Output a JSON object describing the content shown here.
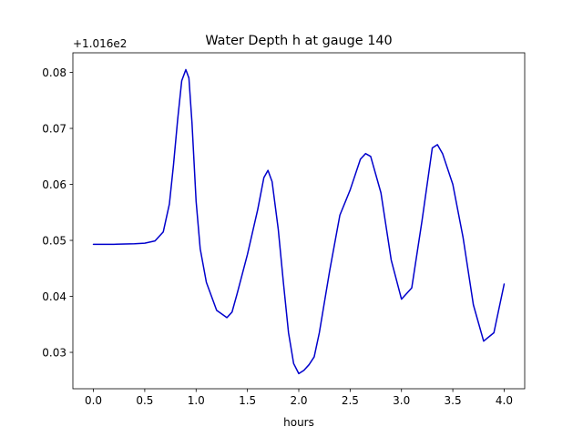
{
  "chart_data": {
    "type": "line",
    "title": "Water Depth h at gauge 140",
    "xlabel": "hours",
    "ylabel": "",
    "y_offset_label": "+1.016e2",
    "xlim": [
      -0.2,
      4.2
    ],
    "ylim": [
      0.0235,
      0.0835
    ],
    "x_ticks": [
      0.0,
      0.5,
      1.0,
      1.5,
      2.0,
      2.5,
      3.0,
      3.5,
      4.0
    ],
    "x_tick_labels": [
      "0.0",
      "0.5",
      "1.0",
      "1.5",
      "2.0",
      "2.5",
      "3.0",
      "3.5",
      "4.0"
    ],
    "y_ticks": [
      0.03,
      0.04,
      0.05,
      0.06,
      0.07,
      0.08
    ],
    "y_tick_labels": [
      "0.03",
      "0.04",
      "0.05",
      "0.06",
      "0.07",
      "0.08"
    ],
    "grid": false,
    "line_color": "#0000cc",
    "series": [
      {
        "x": [
          0.0,
          0.2,
          0.4,
          0.5,
          0.6,
          0.68,
          0.74,
          0.78,
          0.82,
          0.86,
          0.9,
          0.93,
          0.96,
          1.0,
          1.04,
          1.1,
          1.2,
          1.3,
          1.35,
          1.4,
          1.5,
          1.6,
          1.66,
          1.7,
          1.74,
          1.8,
          1.85,
          1.9,
          1.95,
          2.0,
          2.05,
          2.1,
          2.15,
          2.2,
          2.3,
          2.4,
          2.5,
          2.6,
          2.65,
          2.7,
          2.8,
          2.9,
          3.0,
          3.1,
          3.2,
          3.3,
          3.35,
          3.4,
          3.5,
          3.6,
          3.7,
          3.8,
          3.9,
          4.0
        ],
        "y": [
          0.0493,
          0.0493,
          0.0494,
          0.0495,
          0.0499,
          0.0515,
          0.0565,
          0.0635,
          0.0715,
          0.0785,
          0.0805,
          0.079,
          0.071,
          0.057,
          0.0485,
          0.0425,
          0.0375,
          0.0362,
          0.0372,
          0.0405,
          0.0475,
          0.0555,
          0.0612,
          0.0625,
          0.0605,
          0.052,
          0.0425,
          0.0335,
          0.028,
          0.0262,
          0.0268,
          0.0278,
          0.0292,
          0.0335,
          0.0445,
          0.0545,
          0.059,
          0.0645,
          0.0655,
          0.065,
          0.0585,
          0.0465,
          0.0395,
          0.0415,
          0.0535,
          0.0665,
          0.0671,
          0.0655,
          0.06,
          0.0505,
          0.0385,
          0.032,
          0.0335,
          0.0422
        ]
      }
    ]
  }
}
